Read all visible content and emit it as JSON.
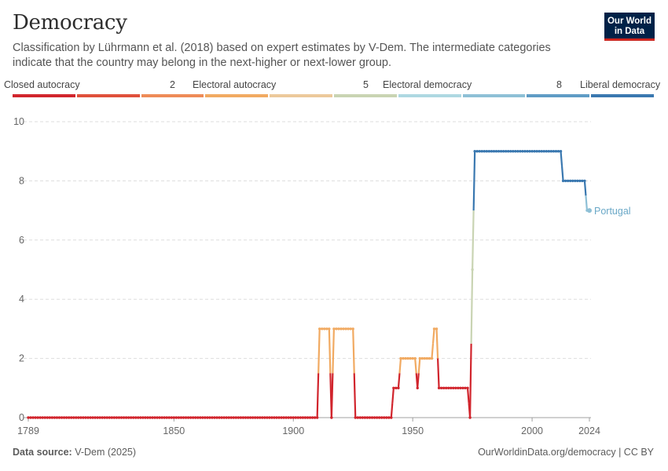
{
  "header": {
    "title": "Democracy",
    "subtitle": "Classification by Lührmann et al. (2018) based on expert estimates by V-Dem. The intermediate categories indicate that the country may belong in the next-higher or next-lower group.",
    "logo_line1": "Our World",
    "logo_line2": "in Data"
  },
  "legend": {
    "labels": [
      "Closed autocracy",
      "2",
      "Electoral autocracy",
      "5",
      "Electoral democracy",
      "8",
      "Liberal democracy"
    ],
    "colors": [
      "#d1252d",
      "#e0503b",
      "#ee8b57",
      "#f1aa62",
      "#ecc99b",
      "#c9d4b3",
      "#aed8e2",
      "#8ec0d6",
      "#5f9cc5",
      "#3a78b0"
    ]
  },
  "footer": {
    "source_label": "Data source:",
    "source_value": "V-Dem (2025)",
    "url": "OurWorldinData.org/democracy | CC BY"
  },
  "chart_data": {
    "type": "line",
    "title": "Democracy",
    "xlabel": "",
    "ylabel": "",
    "xlim": [
      1789,
      2024
    ],
    "ylim": [
      0,
      10
    ],
    "x_ticks": [
      1789,
      1850,
      1900,
      1950,
      2000,
      2024
    ],
    "y_ticks": [
      0,
      2,
      4,
      6,
      8,
      10
    ],
    "grid": "horizontal dashed",
    "series": [
      {
        "name": "Portugal",
        "points": [
          [
            1789,
            0
          ],
          [
            1910,
            0
          ],
          [
            1911,
            3
          ],
          [
            1915,
            3
          ],
          [
            1916,
            0
          ],
          [
            1917,
            3
          ],
          [
            1925,
            3
          ],
          [
            1926,
            0
          ],
          [
            1941,
            0
          ],
          [
            1942,
            1
          ],
          [
            1944,
            1
          ],
          [
            1945,
            2
          ],
          [
            1951,
            2
          ],
          [
            1952,
            1
          ],
          [
            1953,
            2
          ],
          [
            1958,
            2
          ],
          [
            1959,
            3
          ],
          [
            1960,
            3
          ],
          [
            1961,
            1
          ],
          [
            1973,
            1
          ],
          [
            1974,
            0
          ],
          [
            1975,
            5
          ],
          [
            1976,
            9
          ],
          [
            2012,
            9
          ],
          [
            2013,
            8
          ],
          [
            2022,
            8
          ],
          [
            2023,
            7
          ],
          [
            2024,
            7
          ]
        ]
      }
    ]
  }
}
